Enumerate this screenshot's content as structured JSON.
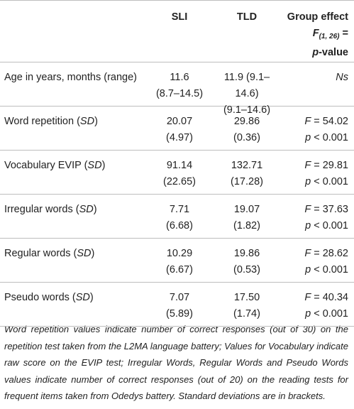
{
  "table": {
    "header": {
      "sli": "SLI",
      "tld": "TLD",
      "group": [
        [
          {
            "text": "Group effect"
          }
        ],
        [
          {
            "text": "F",
            "italic": true
          },
          {
            "text": "(1, 26)",
            "italic": true,
            "sub": true
          },
          {
            "text": " ="
          }
        ],
        [
          {
            "text": "p",
            "italic": true
          },
          {
            "text": "-value"
          }
        ]
      ]
    },
    "rows": [
      {
        "label": [
          {
            "text": "Age in years, months (range)"
          }
        ],
        "sli": [
          "11.6",
          "(8.7–14.5)"
        ],
        "tld": [
          "11.9 (9.1–14.6)",
          "(9.1–14.6)"
        ],
        "group": [
          [
            {
              "text": "Ns",
              "italic": true
            }
          ]
        ]
      },
      {
        "label": [
          {
            "text": "Word repetition ("
          },
          {
            "text": "SD",
            "italic": true
          },
          {
            "text": ")"
          }
        ],
        "sli": [
          "20.07",
          "(4.97)"
        ],
        "tld": [
          "29.86",
          "(0.36)"
        ],
        "group": [
          [
            {
              "text": "F",
              "italic": true
            },
            {
              "text": " = 54.02"
            }
          ],
          [
            {
              "text": "p",
              "italic": true
            },
            {
              "text": " < 0.001"
            }
          ]
        ]
      },
      {
        "label": [
          {
            "text": "Vocabulary EVIP ("
          },
          {
            "text": "SD",
            "italic": true
          },
          {
            "text": ")"
          }
        ],
        "sli": [
          "91.14",
          "(22.65)"
        ],
        "tld": [
          "132.71",
          "(17.28)"
        ],
        "group": [
          [
            {
              "text": "F",
              "italic": true
            },
            {
              "text": " = 29.81"
            }
          ],
          [
            {
              "text": "p",
              "italic": true
            },
            {
              "text": " < 0.001"
            }
          ]
        ]
      },
      {
        "label": [
          {
            "text": "Irregular words ("
          },
          {
            "text": "SD",
            "italic": true
          },
          {
            "text": ")"
          }
        ],
        "sli": [
          "7.71",
          "(6.68)"
        ],
        "tld": [
          "19.07",
          "(1.82)"
        ],
        "group": [
          [
            {
              "text": "F",
              "italic": true
            },
            {
              "text": " = 37.63"
            }
          ],
          [
            {
              "text": "p",
              "italic": true
            },
            {
              "text": " < 0.001"
            }
          ]
        ]
      },
      {
        "label": [
          {
            "text": "Regular words ("
          },
          {
            "text": "SD",
            "italic": true
          },
          {
            "text": ")"
          }
        ],
        "sli": [
          "10.29",
          "(6.67)"
        ],
        "tld": [
          "19.86",
          "(0.53)"
        ],
        "group": [
          [
            {
              "text": "F",
              "italic": true
            },
            {
              "text": " = 28.62"
            }
          ],
          [
            {
              "text": "p",
              "italic": true
            },
            {
              "text": " < 0.001"
            }
          ]
        ]
      },
      {
        "label": [
          {
            "text": "Pseudo words ("
          },
          {
            "text": "SD",
            "italic": true
          },
          {
            "text": ")"
          }
        ],
        "sli": [
          "7.07",
          "(5.89)"
        ],
        "tld": [
          "17.50",
          "(1.74)"
        ],
        "group": [
          [
            {
              "text": "F",
              "italic": true
            },
            {
              "text": " = 40.34"
            }
          ],
          [
            {
              "text": "p",
              "italic": true
            },
            {
              "text": " < 0.001"
            }
          ]
        ]
      }
    ],
    "footnote": "Word repetition values indicate number of correct responses (out of 30) on the repetition test taken from the L2MA language battery; Values for Vocabulary indicate raw score on the EVIP test; Irregular Words, Regular Words and Pseudo Words values indicate number of correct responses (out of 20) on the reading tests for frequent items taken from Odedys battery. Standard deviations are in brackets."
  }
}
